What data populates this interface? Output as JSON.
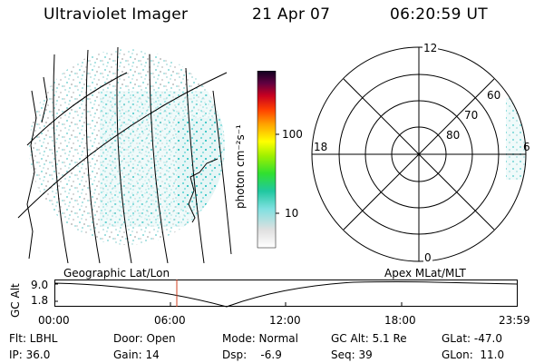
{
  "header": {
    "instrument": "Ultraviolet Imager",
    "date": "21 Apr 07",
    "time": "06:20:59 UT"
  },
  "colorbar": {
    "label": "photon cm⁻²s⁻¹",
    "ticks": [
      "100",
      "10"
    ]
  },
  "polar_plot": {
    "mlt_labels": {
      "top": "12",
      "left": "18",
      "right": "6",
      "bottom": "0"
    },
    "lat_labels": [
      "60",
      "70",
      "80"
    ]
  },
  "panels": {
    "left_label": "Geographic Lat/Lon",
    "right_label": "Apex  MLat/MLT"
  },
  "orbit_plot": {
    "axis_title": "GC Alt",
    "y_ticks": [
      "9.0",
      "1.8"
    ],
    "x_ticks": [
      "00:00",
      "06:00",
      "12:00",
      "18:00",
      "23:59"
    ]
  },
  "footer": {
    "row1": [
      {
        "text": "Flt: LBHL"
      },
      {
        "text": "Door: Open"
      },
      {
        "text": "Mode: Normal"
      },
      {
        "text": "GC Alt: 5.1 Re"
      },
      {
        "text": "GLat: -47.0"
      }
    ],
    "row2": [
      {
        "text": "IP: 36.0"
      },
      {
        "text": "Gain: 14"
      },
      {
        "text": "Dsp:    -6.9"
      },
      {
        "text": "Seq: 39"
      },
      {
        "text": "GLon:  11.0"
      }
    ]
  },
  "colors": {
    "noise": "#a8e0e0",
    "grid": "#000000",
    "red_marker": "#d04020"
  }
}
